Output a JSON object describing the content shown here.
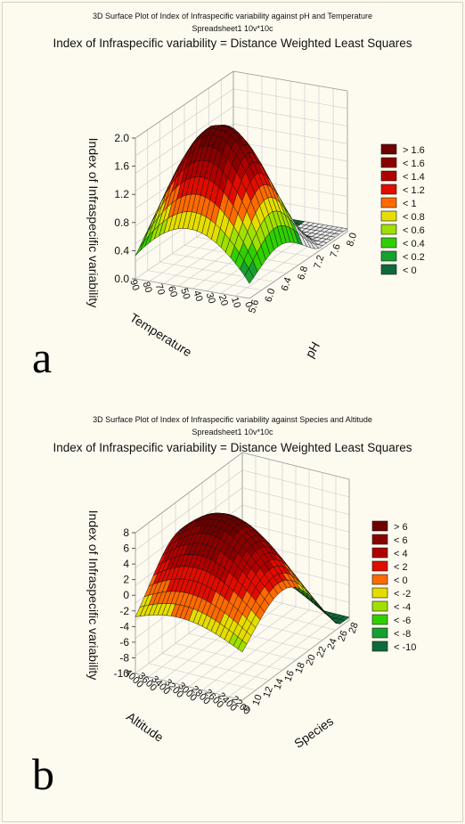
{
  "chart_data": [
    {
      "type": "surface3d",
      "title": "3D Surface Plot of Index of Infraspecific variability against pH and Temperature",
      "subtitle": "Spreadsheet1 10v*10c",
      "fit_label": "Index of Infraspecific variability = Distance Weighted Least Squares",
      "zlabel": "Index of Infraspecific variability",
      "xlabel": "Temperature",
      "ylabel": "pH",
      "z_ticks": [
        "0.0",
        "0.4",
        "0.8",
        "1.2",
        "1.6",
        "2.0"
      ],
      "x_ticks": [
        "90",
        "80",
        "70",
        "60",
        "50",
        "40",
        "30",
        "20",
        "10",
        "0"
      ],
      "y_ticks": [
        "5.6",
        "6.0",
        "6.4",
        "6.8",
        "7.2",
        "7.6",
        "8.0"
      ],
      "zlim": [
        0,
        2.0
      ],
      "legend": [
        "> 1.6",
        "< 1.6",
        "< 1.4",
        "< 1.2",
        "< 1",
        "< 0.8",
        "< 0.6",
        "< 0.4",
        "< 0.2",
        "< 0"
      ],
      "legend_colors": [
        "#6e0000",
        "#8a0000",
        "#b00000",
        "#e00c00",
        "#ff6a00",
        "#e6dd00",
        "#a0e000",
        "#30d000",
        "#17a030",
        "#0e6a3a"
      ],
      "panel_letter": "a"
    },
    {
      "type": "surface3d",
      "title": "3D Surface Plot of Index of Infraspecific variability against Species and Altitude",
      "subtitle": "Spreadsheet1 10v*10c",
      "fit_label": "Index of Infraspecific variability = Distance Weighted Least Squares",
      "zlabel": "Index of Infraspecific variability",
      "xlabel": "Altitude",
      "ylabel": "Species",
      "z_ticks": [
        "-10",
        "-8",
        "-6",
        "-4",
        "-2",
        "0",
        "2",
        "4",
        "6",
        "8"
      ],
      "x_ticks": [
        "4000",
        "3600",
        "3400",
        "3200",
        "3000",
        "2800",
        "2600",
        "2400",
        "2200"
      ],
      "y_ticks": [
        "0",
        "10",
        "12",
        "14",
        "16",
        "18",
        "20",
        "22",
        "24",
        "26",
        "28"
      ],
      "zlim": [
        -10,
        8
      ],
      "legend": [
        "> 6",
        "< 6",
        "< 4",
        "< 2",
        "< 0",
        "< -2",
        "< -4",
        "< -6",
        "< -8",
        "< -10"
      ],
      "legend_colors": [
        "#6e0000",
        "#8a0000",
        "#b00000",
        "#e00c00",
        "#ff6a00",
        "#e6dd00",
        "#a0e000",
        "#30d000",
        "#17a030",
        "#0e6a3a"
      ],
      "panel_letter": "b"
    }
  ]
}
